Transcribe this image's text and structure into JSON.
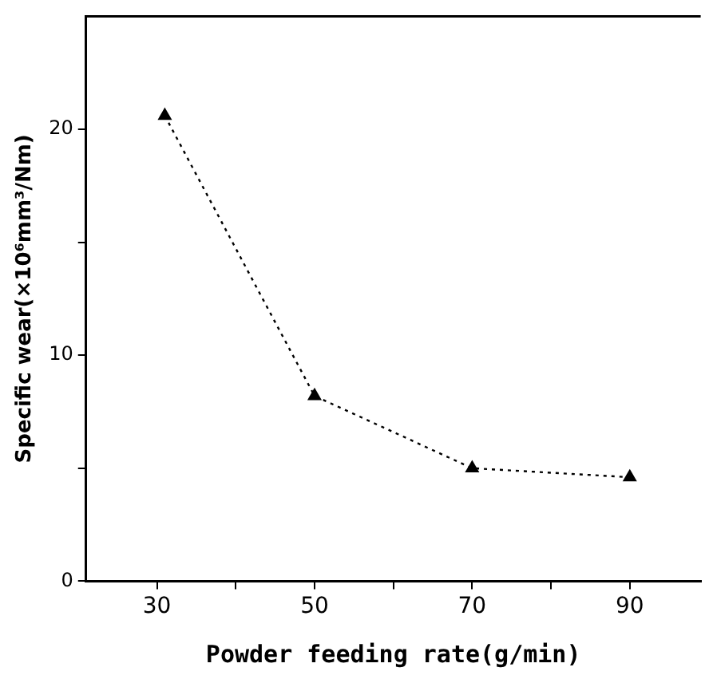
{
  "chart_data": {
    "type": "line",
    "xlabel": "Powder feeding rate(g/min)",
    "ylabel": "Specific wear(×10⁶mm³/Nm)",
    "x": [
      31,
      50,
      70,
      90
    ],
    "series": [
      {
        "color": "#000000",
        "values": [
          20.6,
          8.2,
          5.0,
          4.6
        ]
      }
    ],
    "xlim": [
      21,
      99
    ],
    "xticks": [
      30,
      {
        "value": 40,
        "label": null
      },
      50,
      {
        "value": 60,
        "label": null
      },
      70,
      {
        "value": 80,
        "label": null
      },
      90
    ],
    "ylim": [
      0,
      25
    ],
    "yticks": [
      0,
      {
        "value": 5,
        "label": null
      },
      10,
      {
        "value": 15,
        "label": null
      },
      20
    ],
    "grid": false,
    "legend": false,
    "marker": "triangle",
    "line_style": "dotted"
  }
}
